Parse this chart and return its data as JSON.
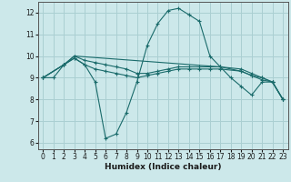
{
  "xlabel": "Humidex (Indice chaleur)",
  "bg_color": "#cce8ea",
  "grid_color": "#aacfd2",
  "line_color": "#1a6b6b",
  "xlim": [
    -0.5,
    23.5
  ],
  "ylim": [
    5.7,
    12.5
  ],
  "xticks": [
    0,
    1,
    2,
    3,
    4,
    5,
    6,
    7,
    8,
    9,
    10,
    11,
    12,
    13,
    14,
    15,
    16,
    17,
    18,
    19,
    20,
    21,
    22,
    23
  ],
  "yticks": [
    6,
    7,
    8,
    9,
    10,
    11,
    12
  ],
  "lines": [
    {
      "x": [
        0,
        1,
        2,
        3,
        4,
        5,
        6,
        7,
        8,
        9,
        10,
        11,
        12,
        13,
        14,
        15,
        16,
        17,
        18,
        19,
        20,
        21,
        22,
        23
      ],
      "y": [
        9.0,
        9.0,
        9.6,
        9.9,
        9.6,
        8.8,
        6.2,
        6.4,
        7.4,
        8.8,
        10.5,
        11.5,
        12.1,
        12.2,
        11.9,
        11.6,
        10.0,
        9.5,
        9.0,
        8.6,
        8.2,
        8.8,
        8.8,
        8.0
      ]
    },
    {
      "x": [
        0,
        2,
        3,
        4,
        5,
        6,
        7,
        8,
        9,
        10,
        11,
        12,
        13,
        14,
        15,
        16,
        17,
        19,
        20,
        21,
        22,
        23
      ],
      "y": [
        9.0,
        9.6,
        9.9,
        9.6,
        9.4,
        9.3,
        9.2,
        9.1,
        9.0,
        9.1,
        9.2,
        9.3,
        9.4,
        9.4,
        9.4,
        9.4,
        9.4,
        9.3,
        9.1,
        8.9,
        8.8,
        8.0
      ]
    },
    {
      "x": [
        0,
        2,
        3,
        4,
        5,
        6,
        7,
        8,
        9,
        10,
        11,
        12,
        13,
        14,
        15,
        16,
        17,
        19,
        20,
        21,
        22,
        23
      ],
      "y": [
        9.0,
        9.6,
        10.0,
        9.8,
        9.7,
        9.6,
        9.5,
        9.4,
        9.2,
        9.2,
        9.3,
        9.4,
        9.5,
        9.5,
        9.5,
        9.5,
        9.5,
        9.4,
        9.2,
        9.0,
        8.8,
        8.0
      ]
    },
    {
      "x": [
        0,
        2,
        3,
        17,
        19,
        20,
        21,
        22,
        23
      ],
      "y": [
        9.0,
        9.6,
        10.0,
        9.5,
        9.3,
        9.1,
        9.0,
        8.8,
        8.0
      ]
    }
  ]
}
